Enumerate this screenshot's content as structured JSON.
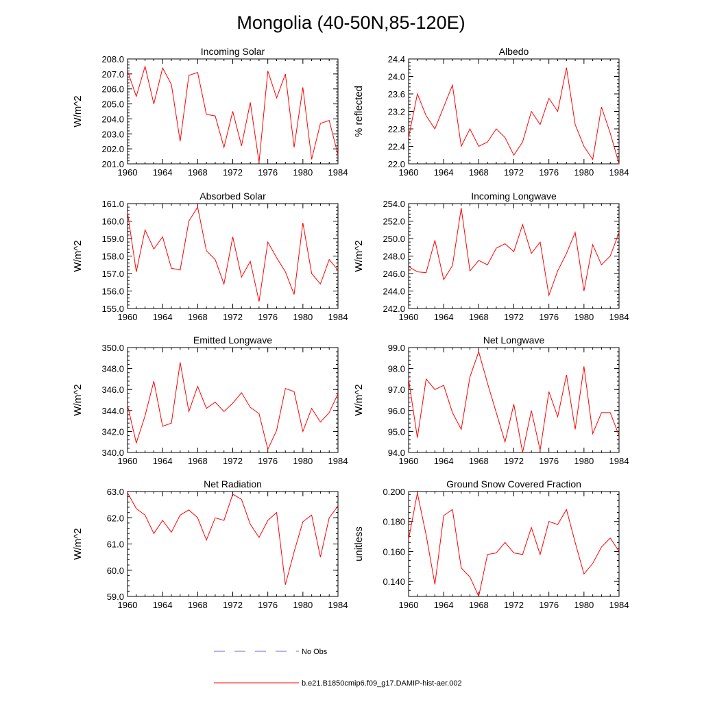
{
  "title": "Mongolia (40-50N,85-120E)",
  "colors": {
    "model": "#ff0000",
    "obs": "#6a6ad8",
    "axis": "#000000"
  },
  "legend": {
    "obs_label": "No Obs",
    "model_label": "b.e21.B1850cmip6.f09_g17.DAMIP-hist-aer.002"
  },
  "chart_data": [
    {
      "type": "line",
      "title": "Incoming Solar",
      "ylabel": "W/m^2",
      "xlim": [
        1960,
        1984
      ],
      "ylim": [
        201.0,
        208.0
      ],
      "yticks": [
        "201.0",
        "202.0",
        "203.0",
        "204.0",
        "205.0",
        "206.0",
        "207.0",
        "208.0"
      ],
      "xticks": [
        "1960",
        "1964",
        "1968",
        "1972",
        "1976",
        "1980",
        "1984"
      ],
      "x": [
        1960,
        1961,
        1962,
        1963,
        1964,
        1965,
        1966,
        1967,
        1968,
        1969,
        1970,
        1971,
        1972,
        1973,
        1974,
        1975,
        1976,
        1977,
        1978,
        1979,
        1980,
        1981,
        1982,
        1983,
        1984
      ],
      "series": [
        {
          "values": [
            207.2,
            205.5,
            207.5,
            205.0,
            207.4,
            206.3,
            202.5,
            206.9,
            207.1,
            204.3,
            204.2,
            202.1,
            204.5,
            202.2,
            205.1,
            201.1,
            207.2,
            205.4,
            207.0,
            202.1,
            206.1,
            201.3,
            203.7,
            203.9,
            201.6
          ]
        }
      ]
    },
    {
      "type": "line",
      "title": "Albedo",
      "ylabel": "% reflected",
      "xlim": [
        1960,
        1984
      ],
      "ylim": [
        22.0,
        24.4
      ],
      "yticks": [
        "22.0",
        "22.4",
        "22.8",
        "23.2",
        "23.6",
        "24.0",
        "24.4"
      ],
      "xticks": [
        "1960",
        "1964",
        "1968",
        "1972",
        "1976",
        "1980",
        "1984"
      ],
      "x": [
        1960,
        1961,
        1962,
        1963,
        1964,
        1965,
        1966,
        1967,
        1968,
        1969,
        1970,
        1971,
        1972,
        1973,
        1974,
        1975,
        1976,
        1977,
        1978,
        1979,
        1980,
        1981,
        1982,
        1983,
        1984
      ],
      "series": [
        {
          "values": [
            22.6,
            23.6,
            23.1,
            22.8,
            23.3,
            23.8,
            22.4,
            22.8,
            22.4,
            22.5,
            22.8,
            22.6,
            22.2,
            22.5,
            23.2,
            22.9,
            23.5,
            23.2,
            24.2,
            22.9,
            22.4,
            22.1,
            23.3,
            22.7,
            22.0
          ]
        }
      ]
    },
    {
      "type": "line",
      "title": "Absorbed Solar",
      "ylabel": "W/m^2",
      "xlim": [
        1960,
        1984
      ],
      "ylim": [
        155.0,
        161.0
      ],
      "yticks": [
        "155.0",
        "156.0",
        "157.0",
        "158.0",
        "159.0",
        "160.0",
        "161.0"
      ],
      "xticks": [
        "1960",
        "1964",
        "1968",
        "1972",
        "1976",
        "1980",
        "1984"
      ],
      "x": [
        1960,
        1961,
        1962,
        1963,
        1964,
        1965,
        1966,
        1967,
        1968,
        1969,
        1970,
        1971,
        1972,
        1973,
        1974,
        1975,
        1976,
        1977,
        1978,
        1979,
        1980,
        1981,
        1982,
        1983,
        1984
      ],
      "series": [
        {
          "values": [
            160.5,
            157.1,
            159.5,
            158.4,
            159.1,
            157.3,
            157.2,
            160.0,
            160.8,
            158.3,
            157.8,
            156.4,
            159.1,
            156.8,
            157.7,
            155.4,
            158.8,
            157.9,
            157.1,
            155.8,
            159.9,
            157.0,
            156.4,
            157.8,
            157.2
          ]
        }
      ]
    },
    {
      "type": "line",
      "title": "Incoming Longwave",
      "ylabel": "W/m^2",
      "xlim": [
        1960,
        1984
      ],
      "ylim": [
        242.0,
        254.0
      ],
      "yticks": [
        "242.0",
        "244.0",
        "246.0",
        "248.0",
        "250.0",
        "252.0",
        "254.0"
      ],
      "xticks": [
        "1960",
        "1964",
        "1968",
        "1972",
        "1976",
        "1980",
        "1984"
      ],
      "x": [
        1960,
        1961,
        1962,
        1963,
        1964,
        1965,
        1966,
        1967,
        1968,
        1969,
        1970,
        1971,
        1972,
        1973,
        1974,
        1975,
        1976,
        1977,
        1978,
        1979,
        1980,
        1981,
        1982,
        1983,
        1984
      ],
      "series": [
        {
          "values": [
            246.8,
            246.2,
            246.1,
            249.8,
            245.3,
            246.9,
            253.5,
            246.3,
            247.5,
            247.0,
            248.9,
            249.4,
            248.5,
            251.6,
            248.3,
            249.6,
            243.5,
            246.3,
            248.3,
            250.7,
            244.0,
            249.3,
            247.0,
            248.0,
            250.7
          ]
        }
      ]
    },
    {
      "type": "line",
      "title": "Emitted Longwave",
      "ylabel": "W/m^2",
      "xlim": [
        1960,
        1984
      ],
      "ylim": [
        340.0,
        350.0
      ],
      "yticks": [
        "340.0",
        "342.0",
        "344.0",
        "346.0",
        "348.0",
        "350.0"
      ],
      "xticks": [
        "1960",
        "1964",
        "1968",
        "1972",
        "1976",
        "1980",
        "1984"
      ],
      "x": [
        1960,
        1961,
        1962,
        1963,
        1964,
        1965,
        1966,
        1967,
        1968,
        1969,
        1970,
        1971,
        1972,
        1973,
        1974,
        1975,
        1976,
        1977,
        1978,
        1979,
        1980,
        1981,
        1982,
        1983,
        1984
      ],
      "series": [
        {
          "values": [
            344.5,
            340.9,
            343.5,
            346.8,
            342.5,
            342.8,
            348.6,
            343.9,
            346.3,
            344.2,
            344.8,
            343.9,
            344.7,
            345.7,
            344.3,
            343.7,
            340.3,
            342.1,
            346.1,
            345.8,
            342.0,
            344.2,
            342.9,
            343.8,
            345.6
          ]
        }
      ]
    },
    {
      "type": "line",
      "title": "Net Longwave",
      "ylabel": "W/m^2",
      "xlim": [
        1960,
        1984
      ],
      "ylim": [
        94.0,
        99.0
      ],
      "yticks": [
        "94.0",
        "95.0",
        "96.0",
        "97.0",
        "98.0",
        "99.0"
      ],
      "xticks": [
        "1960",
        "1964",
        "1968",
        "1972",
        "1976",
        "1980",
        "1984"
      ],
      "x": [
        1960,
        1961,
        1962,
        1963,
        1964,
        1965,
        1966,
        1967,
        1968,
        1969,
        1970,
        1971,
        1972,
        1973,
        1974,
        1975,
        1976,
        1977,
        1978,
        1979,
        1980,
        1981,
        1982,
        1983,
        1984
      ],
      "series": [
        {
          "values": [
            97.5,
            94.7,
            97.5,
            97.0,
            97.2,
            95.9,
            95.1,
            97.6,
            98.8,
            97.3,
            95.9,
            94.5,
            96.3,
            94.0,
            96.0,
            94.1,
            96.9,
            95.7,
            97.7,
            95.1,
            98.1,
            94.9,
            95.9,
            95.9,
            94.8
          ]
        }
      ]
    },
    {
      "type": "line",
      "title": "Net Radiation",
      "ylabel": "W/m^2",
      "xlim": [
        1960,
        1984
      ],
      "ylim": [
        59.0,
        63.0
      ],
      "yticks": [
        "59.0",
        "60.0",
        "61.0",
        "62.0",
        "63.0"
      ],
      "xticks": [
        "1960",
        "1964",
        "1968",
        "1972",
        "1976",
        "1980",
        "1984"
      ],
      "x": [
        1960,
        1961,
        1962,
        1963,
        1964,
        1965,
        1966,
        1967,
        1968,
        1969,
        1970,
        1971,
        1972,
        1973,
        1974,
        1975,
        1976,
        1977,
        1978,
        1979,
        1980,
        1981,
        1982,
        1983,
        1984
      ],
      "series": [
        {
          "values": [
            62.95,
            62.35,
            62.1,
            61.4,
            61.9,
            61.45,
            62.1,
            62.3,
            62.0,
            61.15,
            62.0,
            61.9,
            62.9,
            62.7,
            61.75,
            61.25,
            61.9,
            62.2,
            59.45,
            60.7,
            61.85,
            62.1,
            60.5,
            62.0,
            62.45
          ]
        }
      ]
    },
    {
      "type": "line",
      "title": "Ground Snow Covered Fraction",
      "ylabel": "unitless",
      "xlim": [
        1960,
        1984
      ],
      "ylim": [
        0.13,
        0.2
      ],
      "yticks": [
        "0.140",
        "0.160",
        "0.180",
        "0.200"
      ],
      "xticks": [
        "1960",
        "1964",
        "1968",
        "1972",
        "1976",
        "1980",
        "1984"
      ],
      "x": [
        1960,
        1961,
        1962,
        1963,
        1964,
        1965,
        1966,
        1967,
        1968,
        1969,
        1970,
        1971,
        1972,
        1973,
        1974,
        1975,
        1976,
        1977,
        1978,
        1979,
        1980,
        1981,
        1982,
        1983,
        1984
      ],
      "series": [
        {
          "values": [
            0.168,
            0.199,
            0.171,
            0.138,
            0.184,
            0.188,
            0.149,
            0.143,
            0.13,
            0.158,
            0.159,
            0.166,
            0.159,
            0.158,
            0.176,
            0.158,
            0.18,
            0.178,
            0.188,
            0.166,
            0.145,
            0.152,
            0.163,
            0.169,
            0.16
          ]
        }
      ]
    }
  ]
}
